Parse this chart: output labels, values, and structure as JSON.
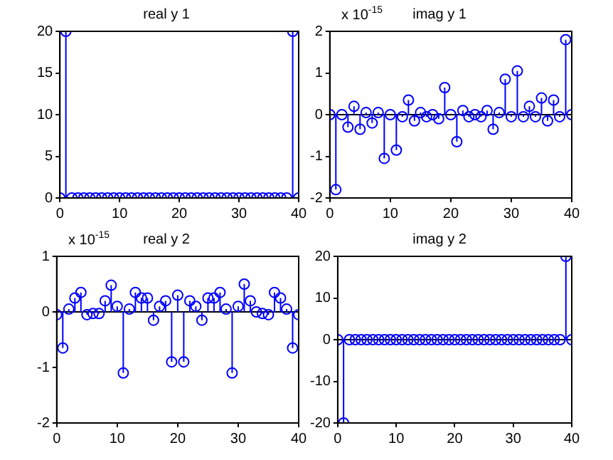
{
  "chart_data": [
    {
      "type": "lollipop",
      "title": "real y 1",
      "x": [
        0,
        1,
        2,
        3,
        4,
        5,
        6,
        7,
        8,
        9,
        10,
        11,
        12,
        13,
        14,
        15,
        16,
        17,
        18,
        19,
        20,
        21,
        22,
        23,
        24,
        25,
        26,
        27,
        28,
        29,
        30,
        31,
        32,
        33,
        34,
        35,
        36,
        37,
        38,
        39,
        40
      ],
      "series": [
        {
          "color": "#0000ff",
          "values": [
            0,
            20,
            0,
            0,
            0,
            0,
            0,
            0,
            0,
            0,
            0,
            0,
            0,
            0,
            0,
            0,
            0,
            0,
            0,
            0,
            0,
            0,
            0,
            0,
            0,
            0,
            0,
            0,
            0,
            0,
            0,
            0,
            0,
            0,
            0,
            0,
            0,
            0,
            0,
            20,
            0
          ]
        }
      ],
      "xlim": [
        0,
        40
      ],
      "xticks": [
        0,
        10,
        20,
        30,
        40
      ],
      "ylim": [
        0,
        20
      ],
      "yticks": [
        0,
        5,
        10,
        15,
        20
      ],
      "marker": "circle",
      "grid": false,
      "legend": false
    },
    {
      "type": "lollipop",
      "title": "imag y 1",
      "annotations": [
        "x 10$^{-15}$"
      ],
      "x": [
        0,
        1,
        2,
        3,
        4,
        5,
        6,
        7,
        8,
        9,
        10,
        11,
        12,
        13,
        14,
        15,
        16,
        17,
        18,
        19,
        20,
        21,
        22,
        23,
        24,
        25,
        26,
        27,
        28,
        29,
        30,
        31,
        32,
        33,
        34,
        35,
        36,
        37,
        38,
        39,
        40
      ],
      "series": [
        {
          "color": "#0000ff",
          "values": [
            0,
            -1.8,
            0,
            -0.3,
            0.2,
            -0.35,
            0.05,
            -0.2,
            0.05,
            -1.05,
            0,
            -0.85,
            -0.05,
            0.35,
            -0.15,
            0.05,
            -0.05,
            0,
            -0.1,
            0.65,
            0,
            -0.65,
            0.1,
            -0.05,
            0,
            -0.05,
            0.1,
            -0.35,
            0.05,
            0.85,
            -0.05,
            1.05,
            -0.05,
            0.2,
            -0.05,
            0.4,
            -0.15,
            0.35,
            -0.05,
            1.8,
            0
          ]
        }
      ],
      "xlim": [
        0,
        40
      ],
      "xticks": [
        0,
        10,
        20,
        30,
        40
      ],
      "ylim": [
        -2,
        2
      ],
      "yticks": [
        -2,
        -1,
        0,
        1,
        2
      ],
      "marker": "circle",
      "grid": false,
      "legend": false,
      "ref_lines": [
        {
          "axis": "y",
          "value": 0,
          "color": "#000000"
        }
      ]
    },
    {
      "type": "lollipop",
      "title": "real y 2",
      "annotations": [
        "x 10$^{-15}$"
      ],
      "x": [
        0,
        1,
        2,
        3,
        4,
        5,
        6,
        7,
        8,
        9,
        10,
        11,
        12,
        13,
        14,
        15,
        16,
        17,
        18,
        19,
        20,
        21,
        22,
        23,
        24,
        25,
        26,
        27,
        28,
        29,
        30,
        31,
        32,
        33,
        34,
        35,
        36,
        37,
        38,
        39,
        40
      ],
      "series": [
        {
          "color": "#0000ff",
          "values": [
            -0.05,
            -0.65,
            0.05,
            0.25,
            0.35,
            -0.05,
            -0.03,
            -0.03,
            0.2,
            0.48,
            0.1,
            -1.1,
            0.05,
            0.35,
            0.25,
            0.25,
            -0.15,
            0.1,
            0.2,
            -0.9,
            0.3,
            -0.9,
            0.2,
            0.1,
            -0.15,
            0.25,
            0.25,
            0.35,
            0.05,
            -1.1,
            0.1,
            0.5,
            0.2,
            0,
            -0.03,
            -0.05,
            0.35,
            0.25,
            0.05,
            -0.65,
            -0.05
          ]
        }
      ],
      "xlim": [
        0,
        40
      ],
      "xticks": [
        0,
        10,
        20,
        30,
        40
      ],
      "ylim": [
        -2,
        1
      ],
      "yticks": [
        -2,
        -1,
        0,
        1
      ],
      "marker": "circle",
      "grid": false,
      "legend": false,
      "ref_lines": [
        {
          "axis": "y",
          "value": 0,
          "color": "#000000"
        }
      ]
    },
    {
      "type": "lollipop",
      "title": "imag y 2",
      "x": [
        0,
        1,
        2,
        3,
        4,
        5,
        6,
        7,
        8,
        9,
        10,
        11,
        12,
        13,
        14,
        15,
        16,
        17,
        18,
        19,
        20,
        21,
        22,
        23,
        24,
        25,
        26,
        27,
        28,
        29,
        30,
        31,
        32,
        33,
        34,
        35,
        36,
        37,
        38,
        39,
        40
      ],
      "series": [
        {
          "color": "#0000ff",
          "values": [
            0,
            -20,
            0,
            0,
            0,
            0,
            0,
            0,
            0,
            0,
            0,
            0,
            0,
            0,
            0,
            0,
            0,
            0,
            0,
            0,
            0,
            0,
            0,
            0,
            0,
            0,
            0,
            0,
            0,
            0,
            0,
            0,
            0,
            0,
            0,
            0,
            0,
            0,
            0,
            20,
            0
          ]
        }
      ],
      "xlim": [
        0,
        40
      ],
      "xticks": [
        0,
        10,
        20,
        30,
        40
      ],
      "ylim": [
        -20,
        20
      ],
      "yticks": [
        -20,
        -10,
        0,
        10,
        20
      ],
      "marker": "circle",
      "grid": false,
      "legend": false,
      "ref_lines": [
        {
          "axis": "y",
          "value": 0,
          "color": "#000000"
        }
      ]
    }
  ]
}
